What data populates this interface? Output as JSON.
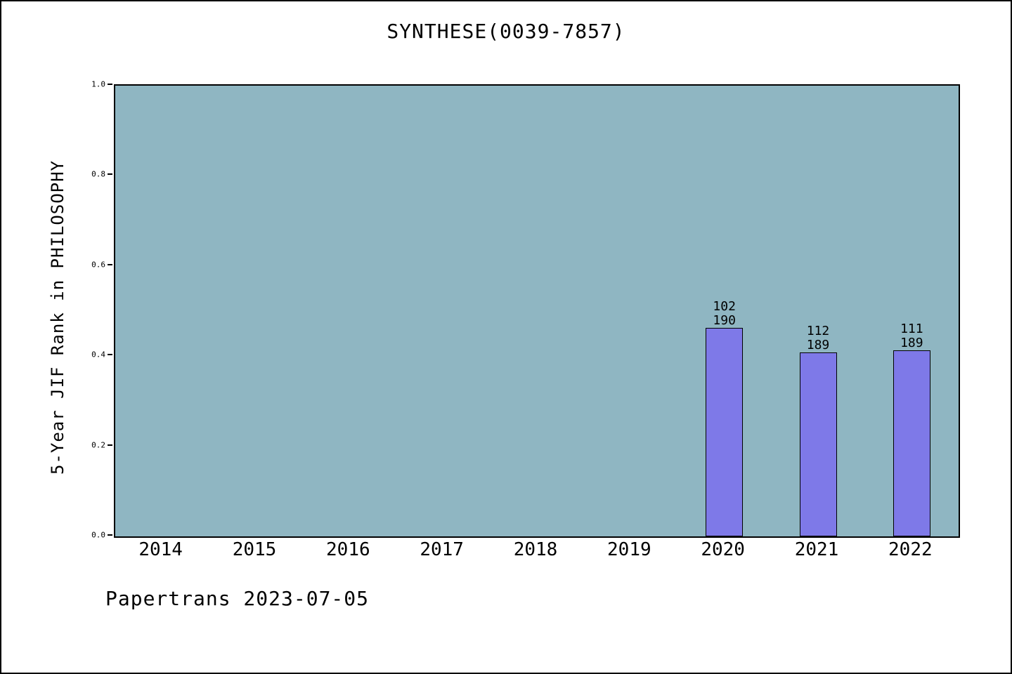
{
  "chart_data": {
    "type": "bar",
    "title": "SYNTHESE(0039-7857)",
    "xlabel": "",
    "ylabel": "5-Year JIF Rank in PHILOSOPHY",
    "categories": [
      "2014",
      "2015",
      "2016",
      "2017",
      "2018",
      "2019",
      "2020",
      "2021",
      "2022"
    ],
    "values": [
      null,
      null,
      null,
      null,
      null,
      null,
      0.4632,
      0.4074,
      0.4127
    ],
    "bar_annotations": [
      null,
      null,
      null,
      null,
      null,
      null,
      {
        "rank": "102",
        "total": "190"
      },
      {
        "rank": "112",
        "total": "189"
      },
      {
        "rank": "111",
        "total": "189"
      }
    ],
    "ylim": [
      0,
      1
    ],
    "ytick_labels": [
      "0.0",
      "0.2",
      "0.4",
      "0.6",
      "0.8",
      "1.0"
    ],
    "grid": false,
    "legend": "none",
    "colors": {
      "plot_background": "#8fb6c2",
      "bar_fill": "#7e79e8",
      "bar_edge": "#000000",
      "text": "#000000"
    }
  },
  "footer": {
    "text": "Papertrans 2023-07-05"
  }
}
